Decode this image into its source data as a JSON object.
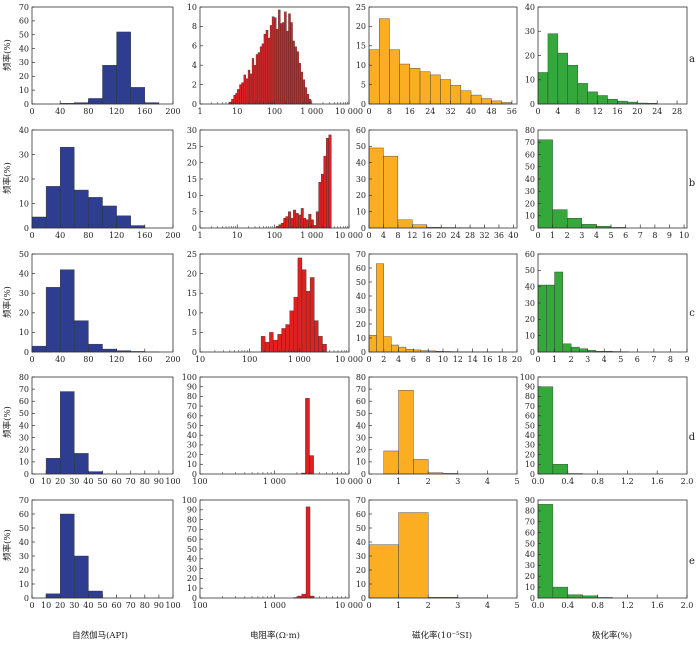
{
  "xlabels": [
    "自然伽马(API)",
    "电阻率(Ω·m)",
    "磁化率(10⁻⁵SI)",
    "极化率(%)"
  ],
  "ylabel": "频率(%)",
  "row_labels": [
    "a",
    "b",
    "c",
    "d",
    "e"
  ],
  "colors": [
    "#2e3d8f",
    "#e02020",
    "#fbae22",
    "#34a83a"
  ],
  "chart_data": [
    {
      "type": "bar",
      "row": "a",
      "col": 0,
      "scale": "linear",
      "xlim": [
        0,
        200
      ],
      "ylim": [
        0,
        70
      ],
      "xticks": [
        0,
        40,
        80,
        120,
        160,
        200
      ],
      "xtick_labels": [
        "0",
        "40",
        "80",
        "120",
        "160",
        "200"
      ],
      "yticks": [
        0,
        10,
        20,
        30,
        40,
        50,
        60,
        70
      ],
      "bin_edges": [
        40,
        60,
        80,
        100,
        120,
        140,
        160,
        180
      ],
      "values": [
        0.5,
        1,
        4,
        28,
        52,
        12,
        1
      ]
    },
    {
      "type": "bar",
      "row": "a",
      "col": 1,
      "scale": "log",
      "xlim": [
        1,
        10000
      ],
      "ylim": [
        0,
        10
      ],
      "xticks": [
        1,
        10,
        100,
        1000,
        10000
      ],
      "xtick_labels": [
        "1",
        "10",
        "100",
        "1 000",
        "10 000"
      ],
      "yticks": [
        0,
        2,
        4,
        6,
        8,
        10
      ],
      "bin_edges": [
        6,
        7,
        8,
        9,
        10,
        11.5,
        13,
        15,
        17,
        19.5,
        22,
        25,
        28,
        32,
        36,
        41,
        46,
        52,
        59,
        67,
        76,
        86,
        98,
        111,
        126,
        143,
        162,
        184,
        209,
        237,
        269,
        305,
        346,
        393,
        446,
        506,
        574,
        651,
        739,
        838,
        951
      ],
      "values": [
        0.2,
        0.5,
        0.9,
        1.1,
        1.5,
        2,
        2.2,
        3,
        2.6,
        3.5,
        3.1,
        4.7,
        4,
        5.1,
        5.3,
        5.9,
        6.2,
        7.2,
        7.6,
        6.8,
        8.1,
        9,
        8.9,
        7.7,
        9.7,
        8.3,
        8.4,
        9.5,
        7.5,
        9.3,
        8.4,
        6.5,
        5.9,
        5.4,
        4.2,
        3.3,
        2.5,
        1.7,
        1,
        0.5
      ]
    },
    {
      "type": "bar",
      "row": "a",
      "col": 2,
      "scale": "linear",
      "xlim": [
        0,
        58
      ],
      "ylim": [
        0,
        25
      ],
      "xticks": [
        0,
        8,
        16,
        24,
        32,
        40,
        48,
        56
      ],
      "xtick_labels": [
        "0",
        "8",
        "16",
        "24",
        "32",
        "40",
        "48",
        "56"
      ],
      "yticks": [
        0,
        5,
        10,
        15,
        20,
        25
      ],
      "bin_edges": [
        0,
        4,
        8,
        12,
        16,
        20,
        24,
        28,
        32,
        36,
        40,
        44,
        48,
        52,
        56
      ],
      "values": [
        14,
        22,
        14,
        10.3,
        9.2,
        8.3,
        7.5,
        6.3,
        4.8,
        3.4,
        2.3,
        1.4,
        0.8,
        0.4
      ]
    },
    {
      "type": "bar",
      "row": "a",
      "col": 3,
      "scale": "linear",
      "xlim": [
        0,
        30
      ],
      "ylim": [
        0,
        40
      ],
      "xticks": [
        0,
        4,
        8,
        12,
        16,
        20,
        24,
        28
      ],
      "xtick_labels": [
        "0",
        "4",
        "8",
        "12",
        "16",
        "20",
        "24",
        "28"
      ],
      "yticks": [
        0,
        10,
        20,
        30,
        40
      ],
      "bin_edges": [
        0,
        2,
        4,
        6,
        8,
        10,
        12,
        14,
        16,
        18,
        20,
        22,
        24
      ],
      "values": [
        13,
        29,
        21,
        16,
        8.5,
        5,
        3.5,
        2,
        1.2,
        0.8,
        0.4,
        0.3
      ]
    },
    {
      "type": "bar",
      "row": "b",
      "col": 0,
      "scale": "linear",
      "xlim": [
        0,
        200
      ],
      "ylim": [
        0,
        40
      ],
      "xticks": [
        0,
        40,
        80,
        120,
        160,
        200
      ],
      "xtick_labels": [
        "0",
        "40",
        "80",
        "120",
        "160",
        "200"
      ],
      "yticks": [
        0,
        10,
        20,
        30,
        40
      ],
      "bin_edges": [
        0,
        20,
        40,
        60,
        80,
        100,
        120,
        140,
        160
      ],
      "values": [
        4.5,
        17,
        33,
        15.5,
        12.5,
        9,
        5,
        1
      ]
    },
    {
      "type": "bar",
      "row": "b",
      "col": 1,
      "scale": "log",
      "xlim": [
        1,
        10000
      ],
      "ylim": [
        0,
        30
      ],
      "xticks": [
        1,
        10,
        100,
        1000,
        10000
      ],
      "xtick_labels": [
        "1",
        "10",
        "100",
        "1 000",
        "10 000"
      ],
      "yticks": [
        0,
        5,
        10,
        15,
        20,
        25,
        30
      ],
      "bin_edges": [
        110,
        130,
        150,
        175,
        200,
        235,
        275,
        320,
        375,
        440,
        515,
        600,
        700,
        820,
        960,
        1120,
        1310,
        1530,
        1790,
        2090,
        2450,
        2860,
        3350
      ],
      "values": [
        0.5,
        1,
        1.5,
        3,
        3.5,
        5,
        3,
        5.5,
        4.5,
        4,
        6,
        3,
        2.5,
        4.2,
        2.5,
        0.8,
        5,
        14,
        16.5,
        22,
        27.5,
        28.5
      ]
    },
    {
      "type": "bar",
      "row": "b",
      "col": 2,
      "scale": "linear",
      "xlim": [
        0,
        41
      ],
      "ylim": [
        0,
        60
      ],
      "xticks": [
        0,
        4,
        8,
        12,
        16,
        20,
        24,
        28,
        32,
        36,
        40
      ],
      "xtick_labels": [
        "0",
        "4",
        "8",
        "12",
        "16",
        "20",
        "24",
        "28",
        "32",
        "36",
        "40"
      ],
      "yticks": [
        0,
        10,
        20,
        30,
        40,
        50,
        60
      ],
      "bin_edges": [
        0,
        4,
        8,
        12,
        16,
        20,
        24,
        28,
        32,
        36,
        40
      ],
      "values": [
        49,
        44,
        5,
        2,
        0.5,
        0.3,
        0.2,
        0.1,
        0,
        0
      ]
    },
    {
      "type": "bar",
      "row": "b",
      "col": 3,
      "scale": "linear",
      "xlim": [
        0,
        10.2
      ],
      "ylim": [
        0,
        80
      ],
      "xticks": [
        0,
        1,
        2,
        3,
        4,
        5,
        6,
        7,
        8,
        9,
        10
      ],
      "xtick_labels": [
        "0",
        "1",
        "2",
        "3",
        "4",
        "5",
        "6",
        "7",
        "8",
        "9",
        "10"
      ],
      "yticks": [
        0,
        10,
        20,
        30,
        40,
        50,
        60,
        70,
        80
      ],
      "bin_edges": [
        0,
        1,
        2,
        3,
        4,
        5,
        6,
        7,
        8,
        9,
        10
      ],
      "values": [
        72,
        15,
        8,
        3,
        1.5,
        0.5,
        0,
        0,
        0,
        0
      ]
    },
    {
      "type": "bar",
      "row": "c",
      "col": 0,
      "scale": "linear",
      "xlim": [
        0,
        200
      ],
      "ylim": [
        0,
        50
      ],
      "xticks": [
        0,
        40,
        80,
        120,
        160,
        200
      ],
      "xtick_labels": [
        "0",
        "40",
        "80",
        "120",
        "160",
        "200"
      ],
      "yticks": [
        0,
        10,
        20,
        30,
        40,
        50
      ],
      "bin_edges": [
        0,
        20,
        40,
        60,
        80,
        100,
        120,
        140,
        160,
        180
      ],
      "values": [
        3,
        33,
        42,
        16,
        4,
        1.5,
        0.7,
        0.3,
        0.1
      ]
    },
    {
      "type": "bar",
      "row": "c",
      "col": 1,
      "scale": "log",
      "xlim": [
        10,
        10000
      ],
      "ylim": [
        0,
        25
      ],
      "xticks": [
        10,
        100,
        1000,
        10000
      ],
      "xtick_labels": [
        "10",
        "100",
        "1 000",
        "10 000"
      ],
      "yticks": [
        0,
        5,
        10,
        15,
        20,
        25
      ],
      "bin_edges": [
        170,
        205,
        250,
        300,
        365,
        440,
        530,
        640,
        775,
        935,
        1130,
        1370,
        1650,
        2000,
        2410,
        2920,
        3530
      ],
      "values": [
        4,
        2.5,
        5,
        3,
        4.5,
        6,
        7,
        10.5,
        14,
        24,
        21,
        15.5,
        19,
        8,
        4,
        2
      ]
    },
    {
      "type": "bar",
      "row": "c",
      "col": 2,
      "scale": "linear",
      "xlim": [
        0,
        20
      ],
      "ylim": [
        0,
        70
      ],
      "xticks": [
        0,
        2,
        4,
        6,
        8,
        10,
        12,
        14,
        16,
        18,
        20
      ],
      "xtick_labels": [
        "0",
        "2",
        "4",
        "6",
        "8",
        "10",
        "12",
        "14",
        "16",
        "18",
        "20"
      ],
      "yticks": [
        0,
        10,
        20,
        30,
        40,
        50,
        60,
        70
      ],
      "bin_edges": [
        0,
        1,
        2,
        3,
        4,
        5,
        6,
        7,
        8,
        9,
        10,
        11,
        12,
        13,
        14,
        15,
        16,
        17,
        18,
        19,
        20
      ],
      "values": [
        12,
        63,
        11,
        5,
        3.5,
        2,
        1.5,
        1,
        0.8,
        0.5,
        0.4,
        0.3,
        0.2,
        0.2,
        0.1,
        0.1,
        0.1,
        0.1,
        0,
        0
      ]
    },
    {
      "type": "bar",
      "row": "c",
      "col": 3,
      "scale": "linear",
      "xlim": [
        0,
        9
      ],
      "ylim": [
        0,
        60
      ],
      "xticks": [
        0,
        1,
        2,
        3,
        4,
        5,
        6,
        7,
        8,
        9
      ],
      "xtick_labels": [
        "0",
        "1",
        "2",
        "3",
        "4",
        "5",
        "6",
        "7",
        "8",
        "9"
      ],
      "yticks": [
        0,
        10,
        20,
        30,
        40,
        50,
        60
      ],
      "bin_edges": [
        0,
        0.5,
        1,
        1.5,
        2,
        2.5,
        3,
        3.5,
        4,
        4.5,
        5,
        5.5
      ],
      "values": [
        41,
        41,
        49,
        5,
        3,
        2,
        1,
        0.5,
        0.5,
        0.3,
        0.2
      ]
    },
    {
      "type": "bar",
      "row": "d",
      "col": 0,
      "scale": "linear",
      "xlim": [
        0,
        100
      ],
      "ylim": [
        0,
        80
      ],
      "xticks": [
        0,
        10,
        20,
        30,
        40,
        50,
        60,
        70,
        80,
        90,
        100
      ],
      "xtick_labels": [
        "0",
        "10",
        "20",
        "30",
        "40",
        "50",
        "60",
        "70",
        "80",
        "90",
        "100"
      ],
      "yticks": [
        0,
        10,
        20,
        30,
        40,
        50,
        60,
        70,
        80
      ],
      "bin_edges": [
        10,
        20,
        30,
        40,
        50
      ],
      "values": [
        13,
        68,
        17,
        2
      ]
    },
    {
      "type": "bar",
      "row": "d",
      "col": 1,
      "scale": "log",
      "xlim": [
        100,
        10000
      ],
      "ylim": [
        0,
        100
      ],
      "xticks": [
        100,
        1000,
        10000
      ],
      "xtick_labels": [
        "100",
        "1 000",
        "10 000"
      ],
      "yticks": [
        0,
        10,
        20,
        30,
        40,
        50,
        60,
        70,
        80,
        90,
        100
      ],
      "bin_edges": [
        2300,
        2600,
        2950,
        3350
      ],
      "values": [
        1,
        78,
        19
      ]
    },
    {
      "type": "bar",
      "row": "d",
      "col": 2,
      "scale": "linear",
      "xlim": [
        0,
        5
      ],
      "ylim": [
        0,
        80
      ],
      "xticks": [
        0,
        1,
        2,
        3,
        4,
        5
      ],
      "xtick_labels": [
        "0",
        "1",
        "2",
        "3",
        "4",
        "5"
      ],
      "yticks": [
        0,
        10,
        20,
        30,
        40,
        50,
        60,
        70,
        80
      ],
      "bin_edges": [
        0,
        0.5,
        1,
        1.5,
        2,
        2.5,
        3,
        3.5
      ],
      "values": [
        0,
        19,
        69,
        12,
        1,
        0.5,
        0
      ]
    },
    {
      "type": "bar",
      "row": "d",
      "col": 3,
      "scale": "linear",
      "xlim": [
        0,
        2
      ],
      "ylim": [
        0,
        100
      ],
      "xticks": [
        0,
        0.4,
        0.8,
        1.2,
        1.6,
        2.0
      ],
      "xtick_labels": [
        "0.0",
        "0.4",
        "0.8",
        "1.2",
        "1.6",
        "2.0"
      ],
      "yticks": [
        0,
        10,
        20,
        30,
        40,
        50,
        60,
        70,
        80,
        90,
        100
      ],
      "bin_edges": [
        0,
        0.2,
        0.4,
        0.6
      ],
      "values": [
        90,
        10,
        0.5
      ]
    },
    {
      "type": "bar",
      "row": "e",
      "col": 0,
      "scale": "linear",
      "xlim": [
        0,
        100
      ],
      "ylim": [
        0,
        70
      ],
      "xticks": [
        0,
        10,
        20,
        30,
        40,
        50,
        60,
        70,
        80,
        90,
        100
      ],
      "xtick_labels": [
        "0",
        "10",
        "20",
        "30",
        "40",
        "50",
        "60",
        "70",
        "80",
        "90",
        "100"
      ],
      "yticks": [
        0,
        10,
        20,
        30,
        40,
        50,
        60,
        70
      ],
      "bin_edges": [
        10,
        20,
        30,
        40,
        50
      ],
      "values": [
        3,
        60,
        30,
        5
      ]
    },
    {
      "type": "bar",
      "row": "e",
      "col": 1,
      "scale": "log",
      "xlim": [
        100,
        10000
      ],
      "ylim": [
        0,
        100
      ],
      "xticks": [
        100,
        1000,
        10000
      ],
      "xtick_labels": [
        "100",
        "1 000",
        "10 000"
      ],
      "yticks": [
        0,
        10,
        20,
        30,
        40,
        50,
        60,
        70,
        80,
        90,
        100
      ],
      "bin_edges": [
        1800,
        2050,
        2330,
        2650,
        3000,
        3400
      ],
      "values": [
        0.5,
        2,
        4,
        93,
        2
      ]
    },
    {
      "type": "bar",
      "row": "e",
      "col": 2,
      "scale": "linear",
      "xlim": [
        0,
        5
      ],
      "ylim": [
        0,
        70
      ],
      "xticks": [
        0,
        1,
        2,
        3,
        4,
        5
      ],
      "xtick_labels": [
        "0",
        "1",
        "2",
        "3",
        "4",
        "5"
      ],
      "yticks": [
        0,
        10,
        20,
        30,
        40,
        50,
        60,
        70
      ],
      "bin_edges": [
        0,
        1,
        2,
        3,
        4
      ],
      "values": [
        38,
        61,
        0.5,
        0.2
      ]
    },
    {
      "type": "bar",
      "row": "e",
      "col": 3,
      "scale": "linear",
      "xlim": [
        0,
        2
      ],
      "ylim": [
        0,
        90
      ],
      "xticks": [
        0,
        0.4,
        0.8,
        1.2,
        1.6,
        2.0
      ],
      "xtick_labels": [
        "0.0",
        "0.4",
        "0.8",
        "1.2",
        "1.6",
        "2.0"
      ],
      "yticks": [
        0,
        10,
        20,
        30,
        40,
        50,
        60,
        70,
        80,
        90
      ],
      "bin_edges": [
        0,
        0.2,
        0.4,
        0.6,
        0.8,
        1.0
      ],
      "values": [
        86,
        10,
        3,
        2,
        0.5
      ]
    }
  ]
}
